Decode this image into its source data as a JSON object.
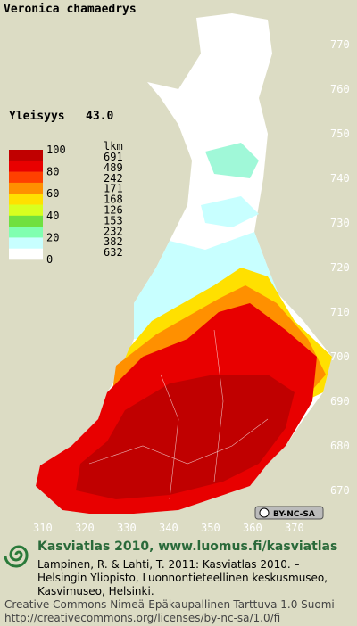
{
  "title": "Veronica chamaedrys",
  "frequency": {
    "label": "Yleisyys",
    "value": "43.0"
  },
  "legend": {
    "scale_labels": [
      "100",
      "80",
      "60",
      "40",
      "20",
      "0"
    ],
    "count_header": "lkm",
    "counts": [
      "691",
      "489",
      "242",
      "171",
      "168",
      "126",
      "153",
      "232",
      "382",
      "632"
    ],
    "band_colors": [
      "#c00000",
      "#e80000",
      "#ff4000",
      "#ff9000",
      "#ffe000",
      "#d8ff20",
      "#70e040",
      "#80ffb0",
      "#c8ffff",
      "#ffffff"
    ]
  },
  "grid": {
    "y_labels": [
      "770",
      "760",
      "750",
      "740",
      "730",
      "720",
      "710",
      "700",
      "690",
      "680",
      "670"
    ],
    "x_labels": [
      "310",
      "320",
      "330",
      "340",
      "350",
      "360",
      "370"
    ]
  },
  "license_badge": "BY-NC-SA",
  "footer": {
    "heading": "Kasviatlas 2010, www.luomus.fi/kasviatlas",
    "citation": [
      "Lampinen, R. & Lahti, T. 2011: Kasviatlas 2010. –",
      "Helsingin Yliopisto, Luonnontieteellinen keskusmuseo,",
      "Kasvimuseo, Helsinki."
    ],
    "license": [
      "Creative Commons Nimeä-Epäkaupallinen-Tarttuva 1.0 Suomi",
      "http://creativecommons.org/licenses/by-nc-sa/1.0/fi"
    ]
  }
}
